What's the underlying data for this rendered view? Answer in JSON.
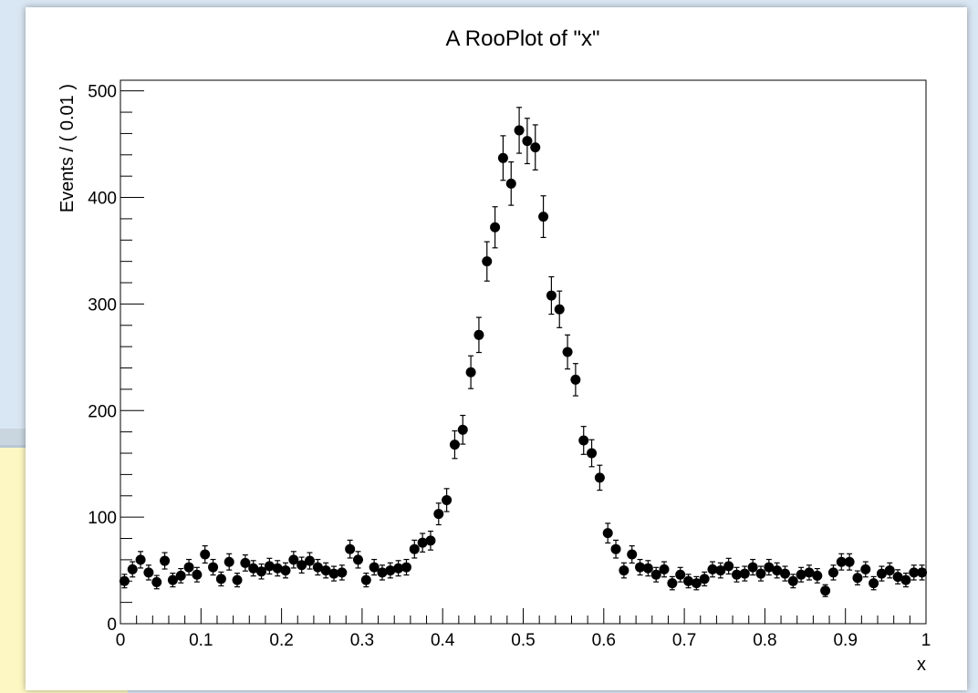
{
  "chart_data": {
    "type": "scatter",
    "title": "A RooPlot of \"x\"",
    "xlabel": "x",
    "ylabel": "Events / ( 0.01 )",
    "xlim": [
      0,
      1
    ],
    "ylim": [
      0,
      510
    ],
    "x_ticks": [
      0,
      0.1,
      0.2,
      0.3,
      0.4,
      0.5,
      0.6,
      0.7,
      0.8,
      0.9,
      1
    ],
    "x_tick_labels": [
      "0",
      "0.1",
      "0.2",
      "0.3",
      "0.4",
      "0.5",
      "0.6",
      "0.7",
      "0.8",
      "0.9",
      "1"
    ],
    "y_ticks": [
      0,
      100,
      200,
      300,
      400,
      500
    ],
    "y_tick_labels": [
      "0",
      "100",
      "200",
      "300",
      "400",
      "500"
    ],
    "grid": false,
    "error_bars": true,
    "series": [
      {
        "marker": "circle",
        "color": "#000000",
        "x": [
          0.005,
          0.015,
          0.025,
          0.035,
          0.045,
          0.055,
          0.065,
          0.075,
          0.085,
          0.095,
          0.105,
          0.115,
          0.125,
          0.135,
          0.145,
          0.155,
          0.165,
          0.175,
          0.185,
          0.195,
          0.205,
          0.215,
          0.225,
          0.235,
          0.245,
          0.255,
          0.265,
          0.275,
          0.285,
          0.295,
          0.305,
          0.315,
          0.325,
          0.335,
          0.345,
          0.355,
          0.365,
          0.375,
          0.385,
          0.395,
          0.405,
          0.415,
          0.425,
          0.435,
          0.445,
          0.455,
          0.465,
          0.475,
          0.485,
          0.495,
          0.505,
          0.515,
          0.525,
          0.535,
          0.545,
          0.555,
          0.565,
          0.575,
          0.585,
          0.595,
          0.605,
          0.615,
          0.625,
          0.635,
          0.645,
          0.655,
          0.665,
          0.675,
          0.685,
          0.695,
          0.705,
          0.715,
          0.725,
          0.735,
          0.745,
          0.755,
          0.765,
          0.775,
          0.785,
          0.795,
          0.805,
          0.815,
          0.825,
          0.835,
          0.845,
          0.855,
          0.865,
          0.875,
          0.885,
          0.895,
          0.905,
          0.915,
          0.925,
          0.935,
          0.945,
          0.955,
          0.965,
          0.975,
          0.985,
          0.995
        ],
        "y": [
          40,
          51,
          60,
          48,
          39,
          59,
          41,
          45,
          53,
          46,
          65,
          53,
          42,
          58,
          41,
          57,
          52,
          49,
          54,
          52,
          50,
          60,
          55,
          59,
          53,
          50,
          47,
          48,
          70,
          60,
          41,
          53,
          48,
          50,
          52,
          53,
          70,
          76,
          78,
          103,
          116,
          168,
          182,
          236,
          271,
          340,
          372,
          437,
          413,
          463,
          453,
          447,
          382,
          308,
          295,
          255,
          229,
          172,
          160,
          137,
          85,
          70,
          50,
          65,
          53,
          52,
          46,
          51,
          38,
          46,
          40,
          38,
          42,
          51,
          50,
          54,
          46,
          47,
          53,
          47,
          53,
          50,
          47,
          40,
          46,
          48,
          45,
          31,
          48,
          58,
          58,
          43,
          51,
          38,
          47,
          50,
          44,
          41,
          48,
          48
        ]
      }
    ]
  }
}
